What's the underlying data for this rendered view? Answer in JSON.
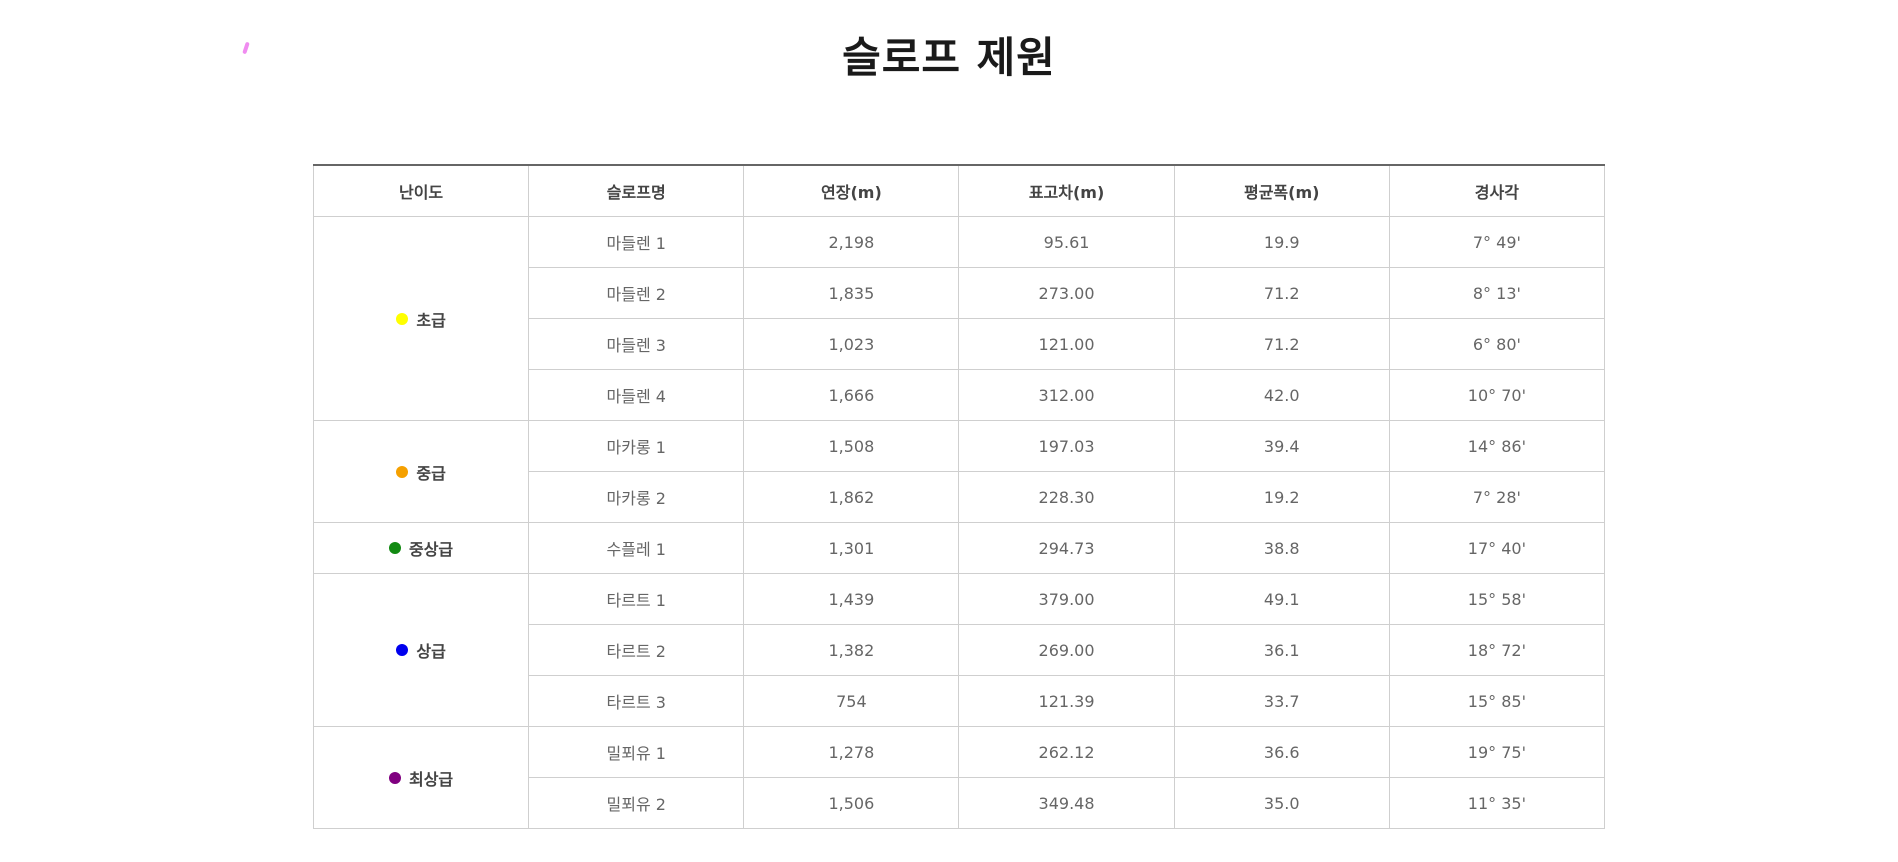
{
  "title": "슬로프 제원",
  "headers": [
    "난이도",
    "슬로프명",
    "연장(m)",
    "표고차(m)",
    "평균폭(m)",
    "경사각"
  ],
  "groups": [
    {
      "level": "초급",
      "color": "#ffff00",
      "rows": [
        {
          "name": "마들렌 1",
          "length": "2,198",
          "elevation": "95.61",
          "width": "19.9",
          "angle": "7° 49'"
        },
        {
          "name": "마들렌 2",
          "length": "1,835",
          "elevation": "273.00",
          "width": "71.2",
          "angle": "8° 13'"
        },
        {
          "name": "마들렌 3",
          "length": "1,023",
          "elevation": "121.00",
          "width": "71.2",
          "angle": "6° 80'"
        },
        {
          "name": "마들렌 4",
          "length": "1,666",
          "elevation": "312.00",
          "width": "42.0",
          "angle": "10° 70'"
        }
      ]
    },
    {
      "level": "중급",
      "color": "#f5a000",
      "rows": [
        {
          "name": "마카롱 1",
          "length": "1,508",
          "elevation": "197.03",
          "width": "39.4",
          "angle": "14° 86'"
        },
        {
          "name": "마카롱 2",
          "length": "1,862",
          "elevation": "228.30",
          "width": "19.2",
          "angle": "7° 28'"
        }
      ]
    },
    {
      "level": "중상급",
      "color": "#128a12",
      "rows": [
        {
          "name": "수플레 1",
          "length": "1,301",
          "elevation": "294.73",
          "width": "38.8",
          "angle": "17° 40'"
        }
      ]
    },
    {
      "level": "상급",
      "color": "#0000ee",
      "rows": [
        {
          "name": "타르트 1",
          "length": "1,439",
          "elevation": "379.00",
          "width": "49.1",
          "angle": "15° 58'"
        },
        {
          "name": "타르트 2",
          "length": "1,382",
          "elevation": "269.00",
          "width": "36.1",
          "angle": "18° 72'"
        },
        {
          "name": "타르트 3",
          "length": "754",
          "elevation": "121.39",
          "width": "33.7",
          "angle": "15° 85'"
        }
      ]
    },
    {
      "level": "최상급",
      "color": "#800080",
      "rows": [
        {
          "name": "밀푀유 1",
          "length": "1,278",
          "elevation": "262.12",
          "width": "36.6",
          "angle": "19° 75'"
        },
        {
          "name": "밀푀유 2",
          "length": "1,506",
          "elevation": "349.48",
          "width": "35.0",
          "angle": "11° 35'"
        }
      ]
    }
  ]
}
